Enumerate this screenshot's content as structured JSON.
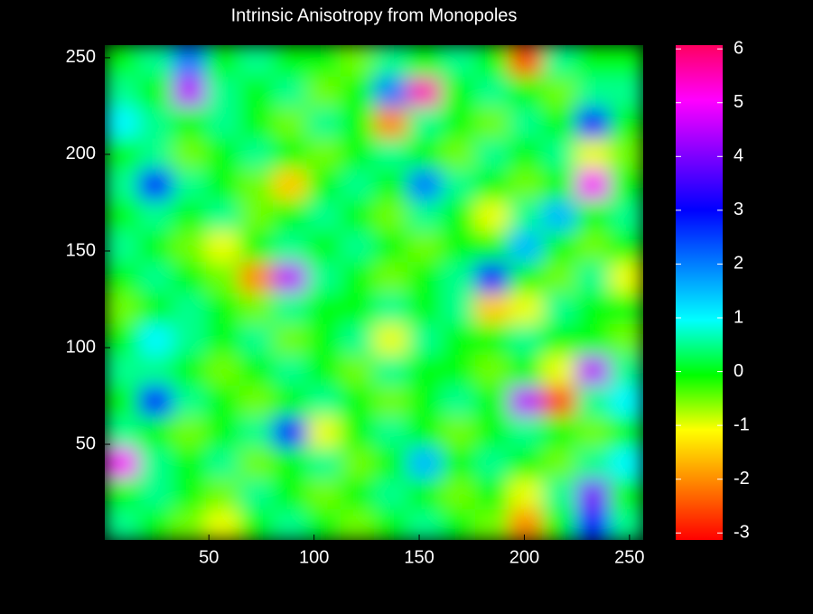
{
  "chart_data": {
    "type": "heatmap",
    "title": "Intrinsic Anisotropy from Monopoles",
    "xlim": [
      0.5,
      256.5
    ],
    "ylim": [
      0.5,
      256.5
    ],
    "xticks": [
      50,
      100,
      150,
      200,
      250
    ],
    "yticks": [
      50,
      100,
      150,
      200,
      250
    ],
    "clim": [
      -3.13,
      6.07
    ],
    "cticks": [
      -3,
      -2,
      -1,
      0,
      1,
      2,
      3,
      4,
      5,
      6
    ],
    "colormap": [
      "#ff0000",
      "#ff8000",
      "#ffff00",
      "#00ff00",
      "#00ffff",
      "#0080ff",
      "#0000ff",
      "#8000ff",
      "#ff00ff",
      "#ff0060"
    ],
    "cell_size": 16,
    "z": [
      [
        0.5,
        0,
        -0.5,
        -1,
        0,
        0.5,
        0,
        -0.5,
        0,
        0.5,
        0,
        -0.5,
        -2,
        0,
        3,
        0.5
      ],
      [
        0,
        0.5,
        0,
        -0.5,
        0.5,
        0,
        -0.5,
        0,
        0.5,
        0,
        -0.5,
        0,
        -1,
        0.5,
        4,
        0
      ],
      [
        5,
        0.5,
        0,
        0.5,
        -0.5,
        0,
        0.5,
        -0.5,
        0,
        1.5,
        0,
        0.5,
        0,
        -0.5,
        0.5,
        1
      ],
      [
        0.5,
        0,
        -0.5,
        0,
        0.5,
        3,
        -1,
        0,
        0.5,
        0,
        -0.5,
        0,
        0.5,
        0,
        -0.5,
        0
      ],
      [
        0,
        3,
        0.5,
        0,
        -0.5,
        0,
        0.5,
        0,
        -0.5,
        0,
        0.5,
        0,
        4.5,
        -2.5,
        0.5,
        1
      ],
      [
        0.5,
        0.5,
        0,
        -0.5,
        0,
        0.5,
        0,
        -0.5,
        0.5,
        0,
        0,
        -0.5,
        0,
        -1,
        4.5,
        0.5
      ],
      [
        0,
        1,
        0.5,
        0,
        0.5,
        -0.5,
        0,
        0.5,
        -1,
        0.5,
        0,
        0,
        0.5,
        0,
        0,
        -0.5
      ],
      [
        -0.5,
        0,
        0.5,
        0,
        -0.5,
        0.5,
        0,
        0,
        0.5,
        0,
        0.5,
        -1.5,
        -1,
        0.5,
        0,
        0
      ],
      [
        0,
        0.5,
        0,
        -0.5,
        -2,
        4.5,
        0.5,
        0,
        -0.5,
        0,
        0.5,
        3,
        0,
        -0.5,
        0.5,
        -1
      ],
      [
        0.5,
        0,
        -0.5,
        -1,
        0,
        0.5,
        0,
        0.5,
        0,
        -0.5,
        0,
        0,
        1.5,
        0,
        -0.5,
        0
      ],
      [
        0,
        0.5,
        0,
        0.5,
        -0.5,
        0,
        0.5,
        0,
        -0.5,
        0.5,
        0,
        -1,
        0.5,
        1.5,
        0,
        0.5
      ],
      [
        0.5,
        3,
        0.5,
        0,
        -0.5,
        -1.5,
        0,
        0.5,
        0,
        2,
        0.5,
        0,
        -0.5,
        0,
        5,
        0
      ],
      [
        0,
        0.5,
        -0.5,
        0,
        0.5,
        0,
        -0.5,
        0,
        0.5,
        0,
        -0.5,
        0.5,
        0,
        0.5,
        -1,
        -0.5
      ],
      [
        1,
        0.5,
        0,
        0.5,
        0,
        -0.5,
        0.5,
        0,
        -2,
        0.5,
        0,
        -0.5,
        0.5,
        0,
        3,
        0
      ],
      [
        0.5,
        0,
        4.5,
        0.5,
        0,
        0.5,
        -0.5,
        0,
        2,
        5.5,
        0,
        0.5,
        0,
        -0.5,
        0.5,
        0.5
      ],
      [
        0,
        0.5,
        2,
        0,
        0.5,
        0,
        0,
        -0.5,
        0.5,
        0,
        0.5,
        0,
        -2.5,
        0.5,
        0,
        0
      ]
    ]
  }
}
